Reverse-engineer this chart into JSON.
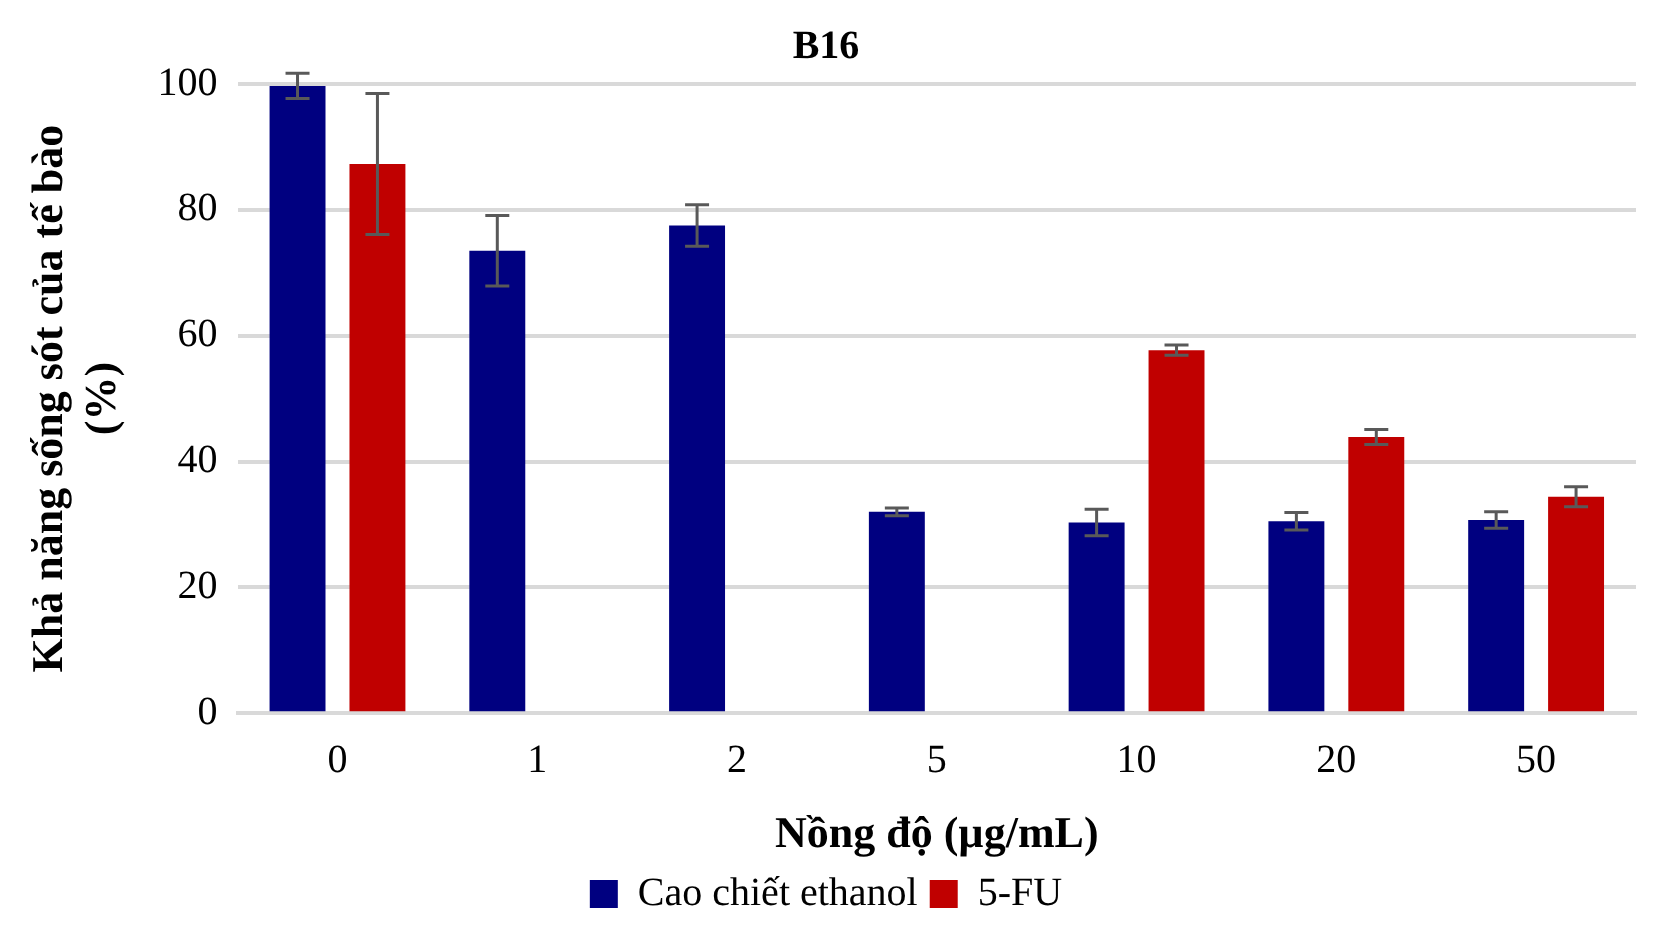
{
  "chart_data": {
    "type": "bar",
    "title": "B16",
    "xlabel": "Nồng độ (µg/mL)",
    "ylabel": "Khả năng sống sót của tế bào (%)",
    "categories": [
      "0",
      "1",
      "2",
      "5",
      "10",
      "20",
      "50"
    ],
    "series": [
      {
        "name": "Cao chiết ethanol",
        "color": "#000080",
        "values": [
          99.7,
          73.5,
          77.5,
          32.0,
          30.3,
          30.5,
          30.7
        ],
        "errors": [
          2,
          5.6,
          3.3,
          0.6,
          2.1,
          1.4,
          1.3
        ]
      },
      {
        "name": "5-FU",
        "color": "#c00000",
        "values": [
          87.3,
          null,
          null,
          null,
          57.7,
          43.9,
          34.4
        ],
        "errors": [
          11.2,
          null,
          null,
          null,
          0.8,
          1.2,
          1.6
        ]
      }
    ],
    "ylim": [
      0,
      100
    ],
    "yticks": [
      0,
      20,
      40,
      60,
      80,
      100
    ],
    "grid": "y",
    "legend": "bottom"
  }
}
